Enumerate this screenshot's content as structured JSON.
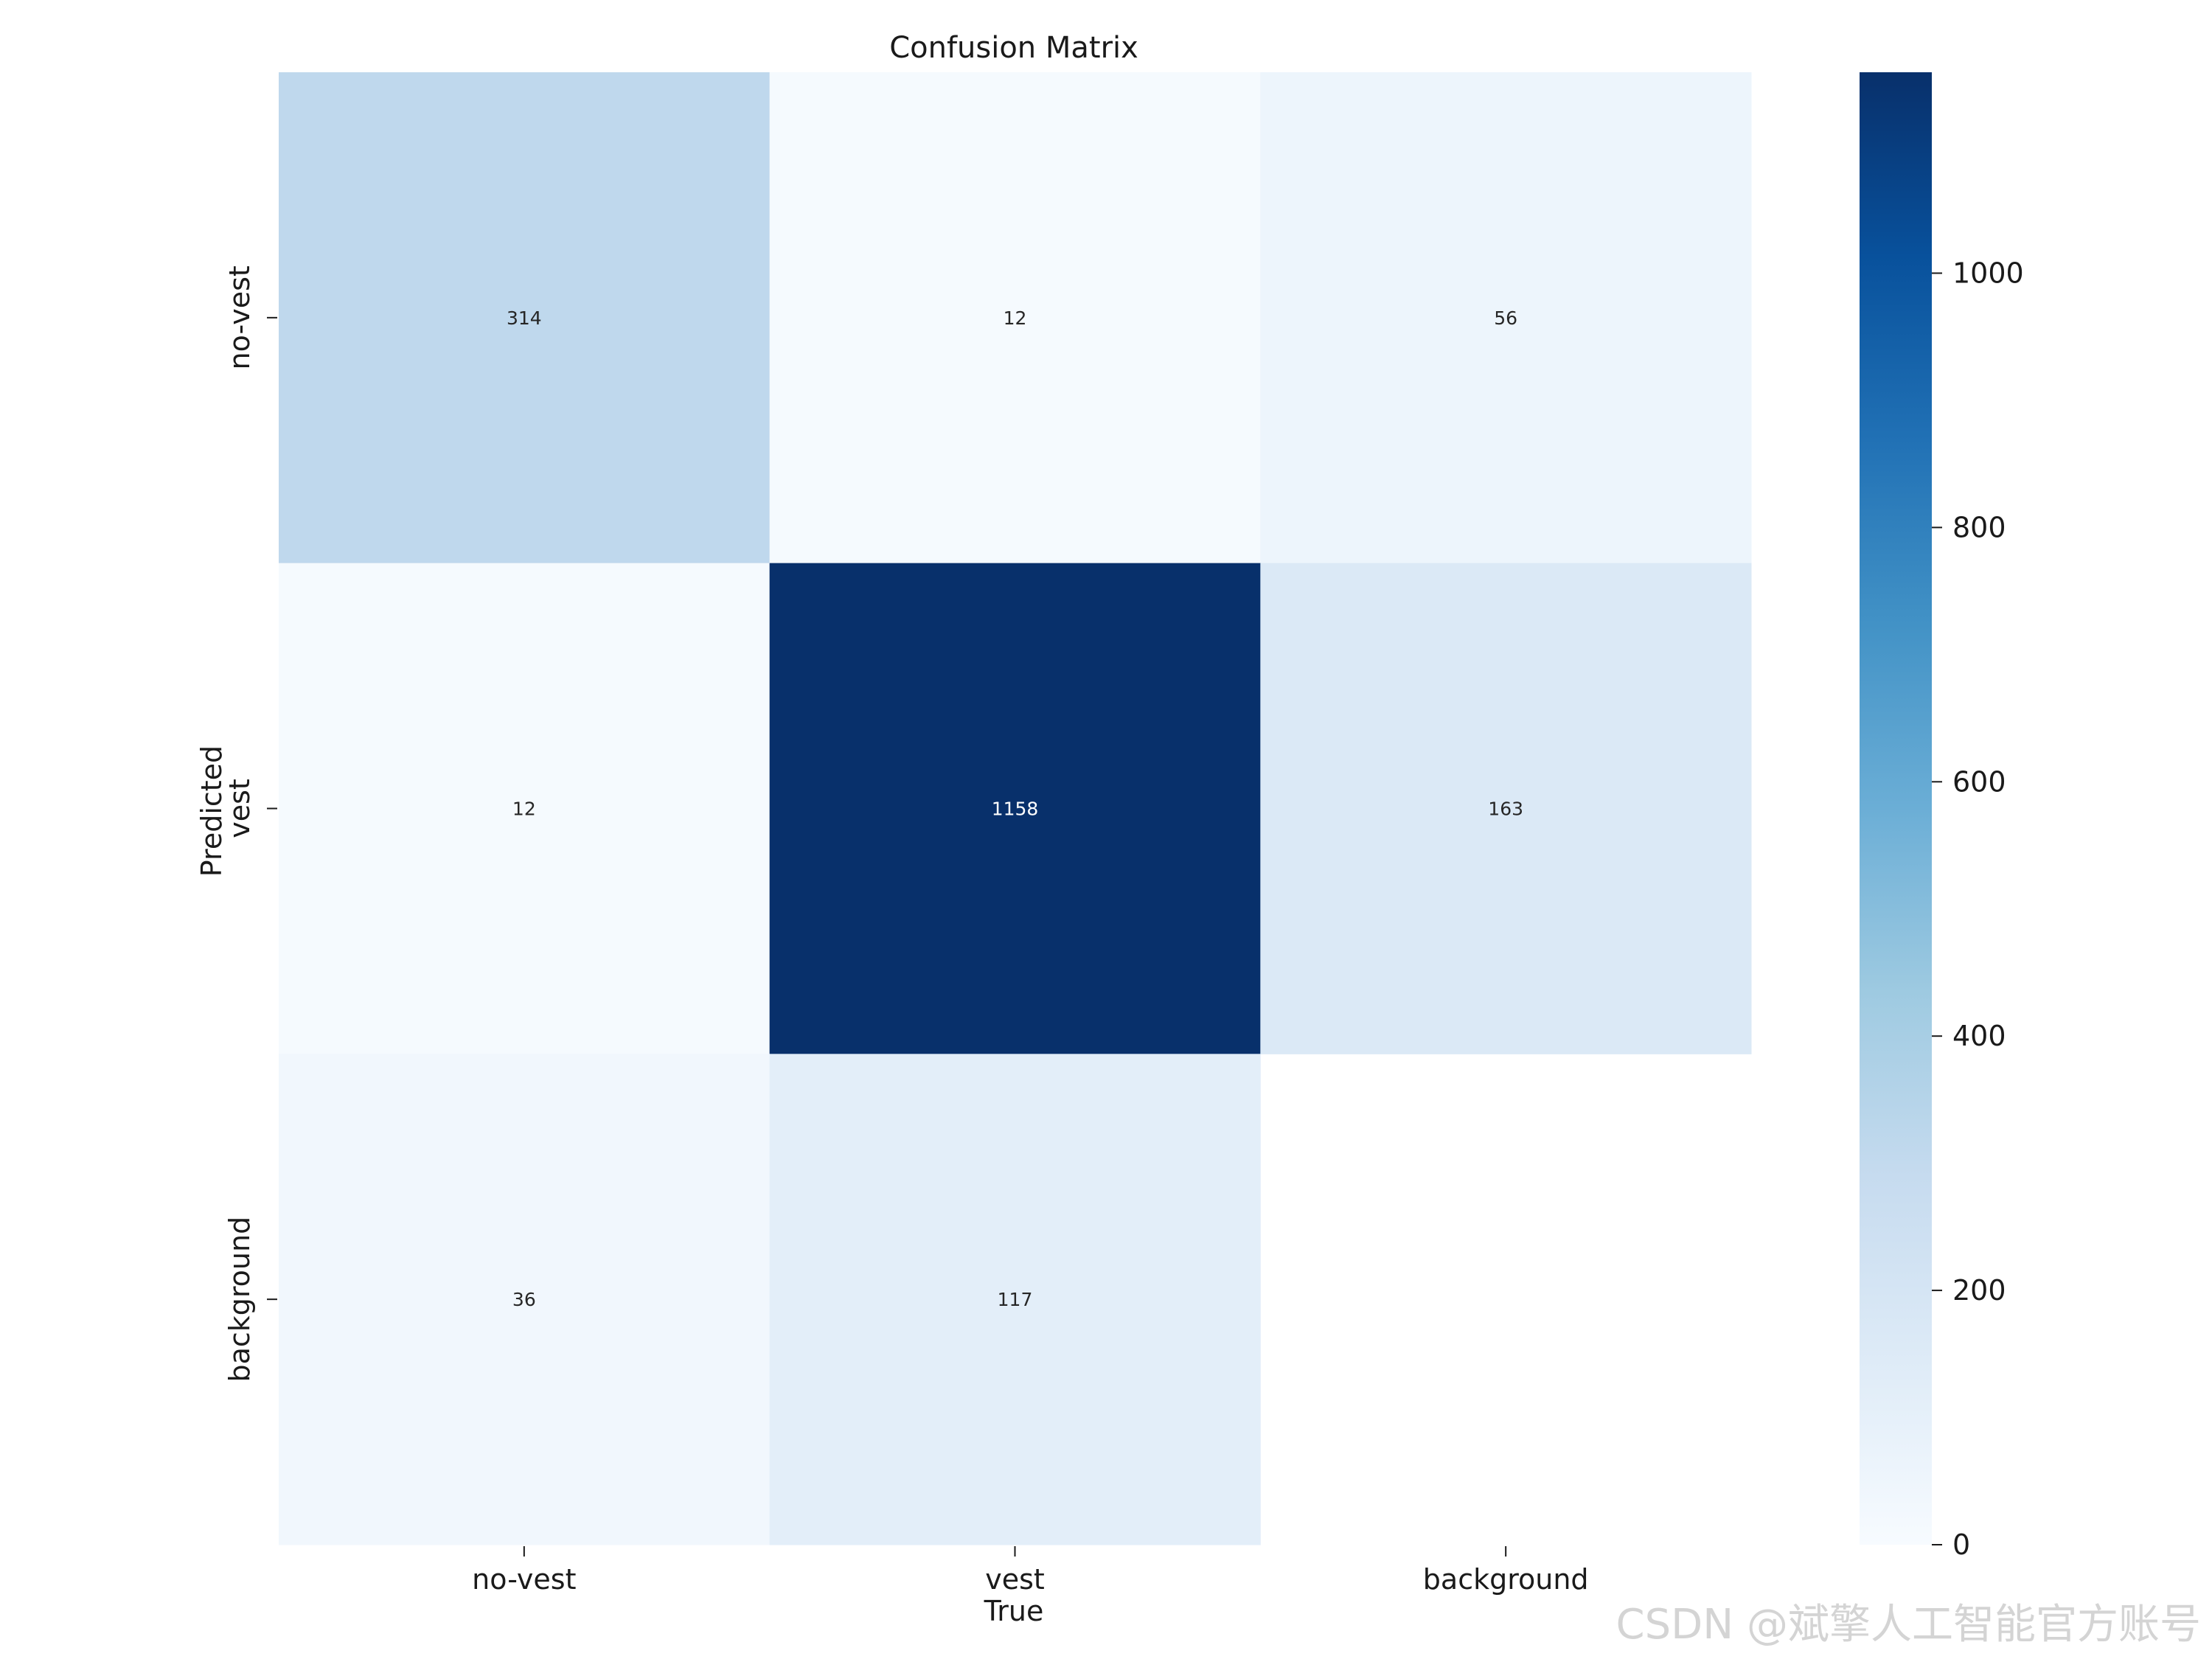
{
  "chart_data": {
    "type": "heatmap",
    "title": "Confusion Matrix",
    "xlabel": "True",
    "ylabel": "Predicted",
    "x_categories": [
      "no-vest",
      "vest",
      "background"
    ],
    "y_categories": [
      "no-vest",
      "vest",
      "background"
    ],
    "values": [
      [
        314,
        12,
        56
      ],
      [
        12,
        1158,
        163
      ],
      [
        36,
        117,
        null
      ]
    ],
    "colormap": "Blues",
    "colorbar": {
      "range": [
        0,
        1158
      ],
      "ticks": [
        0,
        200,
        400,
        600,
        800,
        1000
      ]
    },
    "grid": false
  },
  "watermark": "CSDN @斌擎人工智能官方账号"
}
